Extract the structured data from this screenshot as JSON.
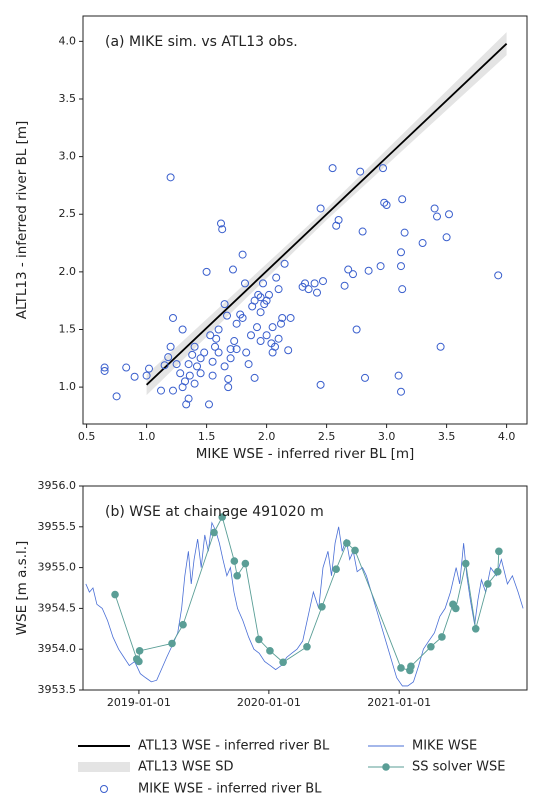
{
  "chart_data": [
    {
      "type": "scatter",
      "title": "(a) MIKE sim. vs ATL13 obs.",
      "xlabel": "MIKE WSE - inferred river BL [m]",
      "ylabel": "ALTL13 - inferred river BL [m]",
      "xlim": [
        0.47,
        4.17
      ],
      "ylim": [
        0.68,
        4.22
      ],
      "xticks": [
        0.5,
        {
          "value": 1,
          "label": "1.0"
        },
        1.5,
        {
          "value": 2,
          "label": "2.0"
        },
        2.5,
        {
          "value": 3,
          "label": "3.0"
        },
        3.5,
        {
          "value": 4,
          "label": "4.0"
        }
      ],
      "yticks": [
        {
          "value": 1,
          "label": "1.0"
        },
        1.5,
        {
          "value": 2,
          "label": "2.0"
        },
        2.5,
        {
          "value": 3,
          "label": "3.0"
        },
        3.5,
        {
          "value": 4,
          "label": "4.0"
        }
      ],
      "series": [
        {
          "name": "ATL13 WSE SD",
          "type": "band",
          "color": "#e4e4e4",
          "x": [
            1.0,
            2.5,
            4.0
          ],
          "lower": [
            0.93,
            2.45,
            3.88
          ],
          "upper": [
            1.11,
            2.55,
            4.08
          ]
        },
        {
          "name": "ATL13 WSE - inferred river BL",
          "type": "line",
          "color": "#000000",
          "x": [
            1.0,
            4.0
          ],
          "values": [
            1.02,
            3.98
          ]
        },
        {
          "name": "MIKE WSE - inferred river BL",
          "type": "scatter",
          "color": "#3a5fcd",
          "x": [
            1.2,
            0.65,
            0.65,
            0.75,
            0.83,
            0.9,
            1.0,
            1.02,
            1.12,
            1.15,
            1.18,
            1.2,
            1.22,
            1.25,
            1.28,
            1.3,
            1.32,
            1.33,
            1.35,
            1.36,
            1.38,
            1.4,
            1.42,
            1.45,
            1.48,
            1.5,
            1.52,
            1.53,
            1.55,
            1.57,
            1.6,
            1.62,
            1.63,
            1.65,
            1.67,
            1.68,
            1.7,
            1.72,
            1.73,
            1.75,
            1.78,
            1.8,
            1.82,
            1.83,
            1.85,
            1.87,
            1.88,
            1.9,
            1.92,
            1.93,
            1.95,
            1.97,
            1.98,
            2.0,
            2.02,
            2.04,
            2.05,
            2.07,
            2.08,
            2.1,
            2.12,
            2.15,
            2.18,
            2.2,
            2.3,
            2.32,
            2.35,
            2.4,
            2.42,
            2.45,
            2.45,
            2.47,
            2.55,
            2.58,
            2.6,
            2.65,
            2.68,
            2.72,
            2.75,
            2.78,
            2.8,
            2.82,
            2.85,
            2.95,
            2.98,
            3.0,
            2.97,
            3.1,
            3.12,
            3.12,
            3.13,
            3.13,
            3.15,
            3.3,
            3.4,
            3.42,
            3.45,
            3.5,
            3.52,
            3.93,
            3.12,
            1.45,
            1.6,
            1.7,
            1.75,
            1.95,
            2.05,
            2.1,
            1.35,
            1.4,
            1.55,
            1.58,
            1.65,
            1.68,
            1.9,
            1.22,
            1.3,
            1.8,
            2.0,
            1.95,
            2.13
          ],
          "values": [
            2.82,
            1.17,
            1.14,
            0.92,
            1.17,
            1.09,
            1.1,
            1.16,
            0.97,
            1.19,
            1.26,
            1.35,
            1.6,
            1.2,
            1.12,
            1.0,
            1.05,
            0.85,
            0.9,
            1.1,
            1.28,
            1.03,
            1.18,
            1.25,
            1.3,
            2.0,
            0.85,
            1.45,
            1.1,
            1.35,
            1.5,
            2.42,
            2.37,
            1.72,
            1.62,
            1.0,
            1.25,
            2.02,
            1.4,
            1.55,
            1.63,
            2.15,
            1.9,
            1.3,
            1.2,
            1.45,
            1.7,
            1.75,
            1.52,
            1.8,
            1.65,
            1.9,
            1.72,
            1.45,
            1.8,
            1.38,
            1.52,
            1.35,
            1.95,
            1.85,
            1.55,
            2.07,
            1.32,
            1.6,
            1.87,
            1.9,
            1.85,
            1.9,
            1.82,
            1.02,
            2.55,
            1.92,
            2.9,
            2.4,
            2.45,
            1.88,
            2.02,
            1.98,
            1.5,
            2.87,
            2.35,
            1.08,
            2.01,
            2.05,
            2.6,
            2.58,
            2.9,
            1.1,
            0.96,
            2.17,
            2.63,
            1.85,
            2.34,
            2.25,
            2.55,
            2.48,
            1.35,
            2.3,
            2.5,
            1.97,
            2.05,
            1.12,
            1.3,
            1.33,
            1.33,
            1.4,
            1.3,
            1.42,
            1.2,
            1.35,
            1.22,
            1.42,
            1.18,
            1.07,
            1.08,
            0.97,
            1.5,
            1.6,
            1.75,
            1.78,
            1.6
          ]
        }
      ]
    },
    {
      "type": "line",
      "title": "(b) WSE at chainage 491020 m",
      "ylabel": "WSE [m a.s.l.]",
      "xlim": [
        "2018-07-28",
        "2021-12-26"
      ],
      "xticks": [
        "2019-01-01",
        "2020-01-01",
        "2021-01-01"
      ],
      "ylim": [
        3953.5,
        3956.0
      ],
      "yticks": [
        {
          "value": 3953.5,
          "label": "3953.5"
        },
        {
          "value": 3954,
          "label": "3954.0"
        },
        3954.5,
        {
          "value": 3955,
          "label": "3955.0"
        },
        3955.5,
        {
          "value": 3956,
          "label": "3956.0"
        }
      ],
      "series": [
        {
          "name": "MIKE WSE",
          "color": "#4a6fd6",
          "marker": false,
          "x": [
            "2018-08-05",
            "2018-08-15",
            "2018-08-25",
            "2018-09-05",
            "2018-09-20",
            "2018-10-05",
            "2018-10-20",
            "2018-11-05",
            "2018-11-20",
            "2018-12-05",
            "2018-12-20",
            "2019-01-05",
            "2019-01-20",
            "2019-02-05",
            "2019-02-20",
            "2019-03-05",
            "2019-03-20",
            "2019-04-05",
            "2019-04-20",
            "2019-05-01",
            "2019-05-10",
            "2019-05-20",
            "2019-05-28",
            "2019-06-05",
            "2019-06-15",
            "2019-06-25",
            "2019-07-05",
            "2019-07-15",
            "2019-07-25",
            "2019-08-05",
            "2019-08-15",
            "2019-08-25",
            "2019-09-05",
            "2019-09-15",
            "2019-09-25",
            "2019-10-05",
            "2019-10-20",
            "2019-11-05",
            "2019-11-20",
            "2019-12-05",
            "2019-12-20",
            "2020-01-05",
            "2020-01-20",
            "2020-02-05",
            "2020-02-20",
            "2020-03-05",
            "2020-03-20",
            "2020-04-05",
            "2020-04-20",
            "2020-05-05",
            "2020-05-20",
            "2020-06-01",
            "2020-06-15",
            "2020-06-25",
            "2020-07-05",
            "2020-07-15",
            "2020-07-25",
            "2020-08-05",
            "2020-08-15",
            "2020-08-25",
            "2020-09-05",
            "2020-09-20",
            "2020-10-01",
            "2020-12-25",
            "2021-01-10",
            "2021-01-25",
            "2021-02-10",
            "2021-02-25",
            "2021-03-10",
            "2021-03-25",
            "2021-04-10",
            "2021-04-25",
            "2021-05-10",
            "2021-05-25",
            "2021-06-10",
            "2021-06-20",
            "2021-07-01",
            "2021-07-10",
            "2021-07-20",
            "2021-08-01",
            "2021-08-10",
            "2021-08-20",
            "2021-09-01",
            "2021-09-15",
            "2021-10-01",
            "2021-10-15",
            "2021-11-01",
            "2021-11-15",
            "2021-12-01",
            "2021-12-15"
          ],
          "values": [
            3954.8,
            3954.7,
            3954.75,
            3954.55,
            3954.5,
            3954.35,
            3954.15,
            3954.0,
            3953.9,
            3953.8,
            3953.85,
            3953.7,
            3953.65,
            3953.6,
            3953.62,
            3953.75,
            3953.9,
            3954.05,
            3954.2,
            3954.5,
            3954.9,
            3955.2,
            3954.8,
            3955.1,
            3955.35,
            3955.0,
            3955.4,
            3955.2,
            3955.55,
            3955.45,
            3955.3,
            3955.1,
            3954.9,
            3955.0,
            3954.7,
            3954.5,
            3954.35,
            3954.15,
            3954.0,
            3953.95,
            3953.85,
            3953.8,
            3953.75,
            3953.8,
            3953.9,
            3953.95,
            3954.0,
            3954.1,
            3954.4,
            3954.7,
            3954.5,
            3955.0,
            3955.2,
            3954.9,
            3955.3,
            3955.5,
            3955.2,
            3955.35,
            3955.1,
            3955.2,
            3954.95,
            3955.0,
            3954.9,
            3953.65,
            3953.55,
            3953.55,
            3953.6,
            3953.8,
            3954.0,
            3954.1,
            3954.2,
            3954.4,
            3954.5,
            3954.7,
            3955.0,
            3954.8,
            3955.3,
            3954.9,
            3954.6,
            3954.3,
            3954.6,
            3954.85,
            3954.7,
            3955.0,
            3954.9,
            3955.1,
            3954.8,
            3954.9,
            3954.7,
            3954.5
          ]
        },
        {
          "name": "SS solver WSE",
          "color": "#5a9e96",
          "marker": true,
          "x": [
            "2018-10-26",
            "2018-12-26",
            "2019-01-01",
            "2019-01-03",
            "2019-04-04",
            "2019-05-05",
            "2019-07-31",
            "2019-08-23",
            "2019-09-26",
            "2019-10-04",
            "2019-10-27",
            "2019-12-04",
            "2020-01-04",
            "2020-02-10",
            "2020-04-17",
            "2020-05-29",
            "2020-07-08",
            "2020-08-07",
            "2020-08-30",
            "2021-01-06",
            "2021-01-31",
            "2021-02-03",
            "2021-03-31",
            "2021-05-01",
            "2021-06-01",
            "2021-06-09",
            "2021-07-07",
            "2021-08-04",
            "2021-09-07",
            "2021-10-05",
            "2021-10-08"
          ],
          "values": [
            3954.67,
            3953.88,
            3953.85,
            3953.98,
            3954.07,
            3954.3,
            3955.43,
            3955.62,
            3955.08,
            3954.9,
            3955.05,
            3954.12,
            3953.98,
            3953.84,
            3954.03,
            3954.52,
            3954.98,
            3955.3,
            3955.21,
            3953.77,
            3953.74,
            3953.79,
            3954.03,
            3954.15,
            3954.55,
            3954.5,
            3955.05,
            3954.25,
            3954.8,
            3954.95,
            3955.2
          ]
        }
      ]
    }
  ]
}
